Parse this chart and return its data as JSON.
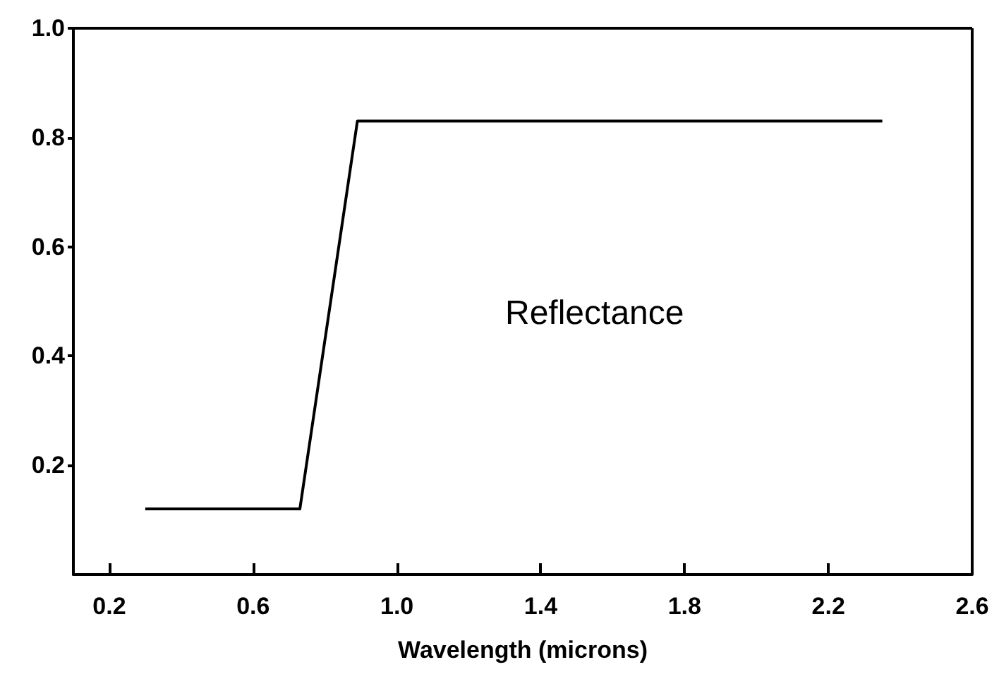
{
  "chart_data": {
    "type": "line",
    "xlabel": "Wavelength (microns)",
    "x": [
      0.3,
      0.73,
      0.89,
      2.35
    ],
    "series": [
      {
        "color": "#000000",
        "values": [
          0.12,
          0.12,
          0.83,
          0.83
        ]
      }
    ],
    "xlim": [
      0.1,
      2.6
    ],
    "xticks": [
      0.2,
      0.6,
      {
        "value": 1,
        "label": "1.0"
      },
      1.4,
      1.8,
      2.2,
      2.6
    ],
    "ylim": [
      0,
      1
    ],
    "yticks": [
      0.2,
      0.4,
      0.6,
      0.8,
      {
        "value": 1,
        "label": "1.0"
      }
    ],
    "annotations": [
      "Reflectance"
    ],
    "grid": false,
    "marker": "none",
    "line_style": "solid"
  }
}
